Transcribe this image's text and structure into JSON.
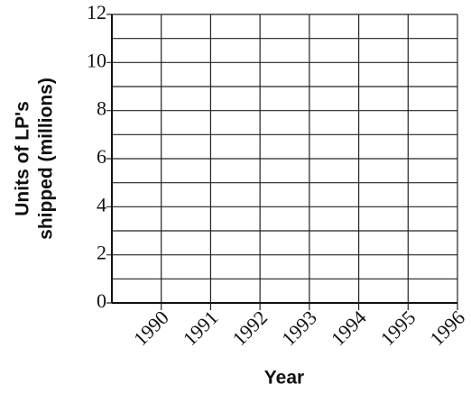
{
  "chart_data": {
    "type": "line",
    "ylabel": [
      "Units of LP's",
      "shipped (millions)"
    ],
    "xlabel": "Year",
    "categories": [
      "1990",
      "1991",
      "1992",
      "1993",
      "1994",
      "1995",
      "1996"
    ],
    "series": [],
    "ylim": [
      0,
      12
    ],
    "yticks": [
      0,
      2,
      4,
      6,
      8,
      10,
      12
    ],
    "minor_yticks": [
      1,
      3,
      5,
      7,
      9,
      11
    ],
    "grid": true
  }
}
